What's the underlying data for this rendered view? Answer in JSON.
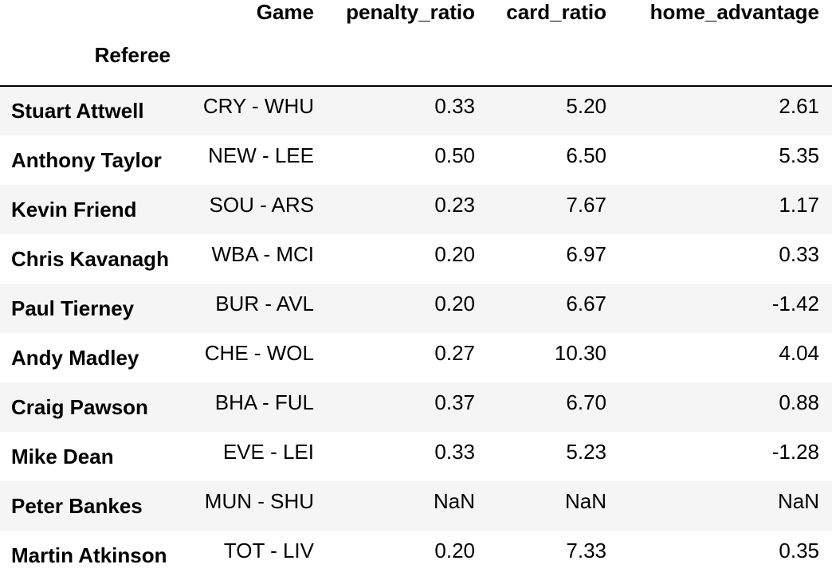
{
  "table": {
    "columns": [
      "Game",
      "penalty_ratio",
      "card_ratio",
      "home_advantage"
    ],
    "index_name": "Referee",
    "rows": [
      {
        "referee": "Stuart Attwell",
        "game": "CRY - WHU",
        "penalty_ratio": "0.33",
        "card_ratio": "5.20",
        "home_advantage": "2.61"
      },
      {
        "referee": "Anthony Taylor",
        "game": "NEW - LEE",
        "penalty_ratio": "0.50",
        "card_ratio": "6.50",
        "home_advantage": "5.35"
      },
      {
        "referee": "Kevin Friend",
        "game": "SOU - ARS",
        "penalty_ratio": "0.23",
        "card_ratio": "7.67",
        "home_advantage": "1.17"
      },
      {
        "referee": "Chris Kavanagh",
        "game": "WBA - MCI",
        "penalty_ratio": "0.20",
        "card_ratio": "6.97",
        "home_advantage": "0.33"
      },
      {
        "referee": "Paul Tierney",
        "game": "BUR - AVL",
        "penalty_ratio": "0.20",
        "card_ratio": "6.67",
        "home_advantage": "-1.42"
      },
      {
        "referee": "Andy Madley",
        "game": "CHE - WOL",
        "penalty_ratio": "0.27",
        "card_ratio": "10.30",
        "home_advantage": "4.04"
      },
      {
        "referee": "Craig Pawson",
        "game": "BHA - FUL",
        "penalty_ratio": "0.37",
        "card_ratio": "6.70",
        "home_advantage": "0.88"
      },
      {
        "referee": "Mike Dean",
        "game": "EVE - LEI",
        "penalty_ratio": "0.33",
        "card_ratio": "5.23",
        "home_advantage": "-1.28"
      },
      {
        "referee": "Peter Bankes",
        "game": "MUN - SHU",
        "penalty_ratio": "NaN",
        "card_ratio": "NaN",
        "home_advantage": "NaN"
      },
      {
        "referee": "Martin Atkinson",
        "game": "TOT - LIV",
        "penalty_ratio": "0.20",
        "card_ratio": "7.33",
        "home_advantage": "0.35"
      }
    ]
  }
}
